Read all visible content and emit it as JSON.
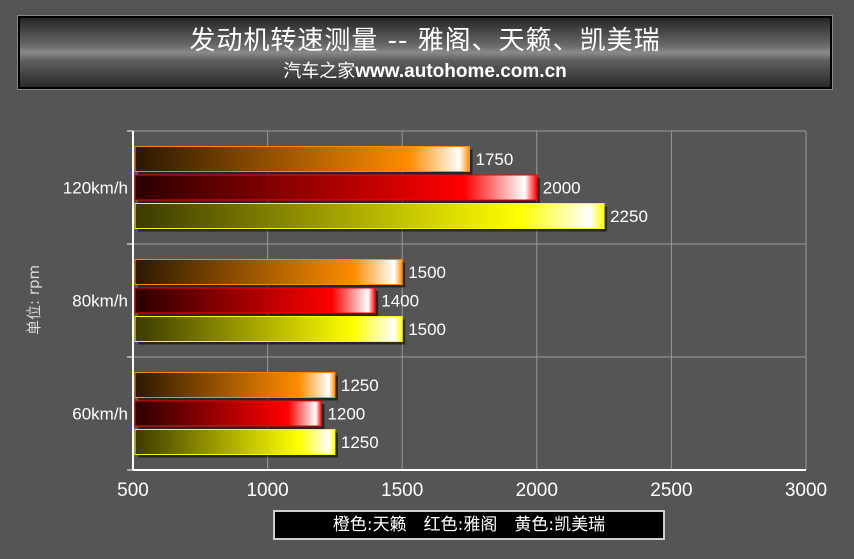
{
  "title": {
    "main": "发动机转速测量 -- 雅阁、天籁、凯美瑞",
    "sub_cn": "汽车之家",
    "sub_url": "www.autohome.com.cn"
  },
  "legend_text": "橙色:天籁　红色:雅阁　黄色:凯美瑞",
  "colors": {
    "orange": "#FF8C00",
    "red": "#FF0000",
    "yellow": "#FFFF00",
    "background": "#555555"
  },
  "chart_data": {
    "type": "bar",
    "orientation": "horizontal",
    "categories": [
      "120km/h",
      "80km/h",
      "60km/h"
    ],
    "series": [
      {
        "color": "orange",
        "values": [
          1750,
          1500,
          1250
        ]
      },
      {
        "color": "red",
        "values": [
          2000,
          1400,
          1200
        ]
      },
      {
        "color": "yellow",
        "values": [
          2250,
          1500,
          1250
        ]
      }
    ],
    "ylabel": "单位: rpm",
    "xlim": [
      500,
      3000
    ],
    "xticks": [
      "500",
      "1000",
      "1500",
      "2000",
      "2500",
      "3000"
    ],
    "grid": true,
    "legend": "bottom-center"
  }
}
